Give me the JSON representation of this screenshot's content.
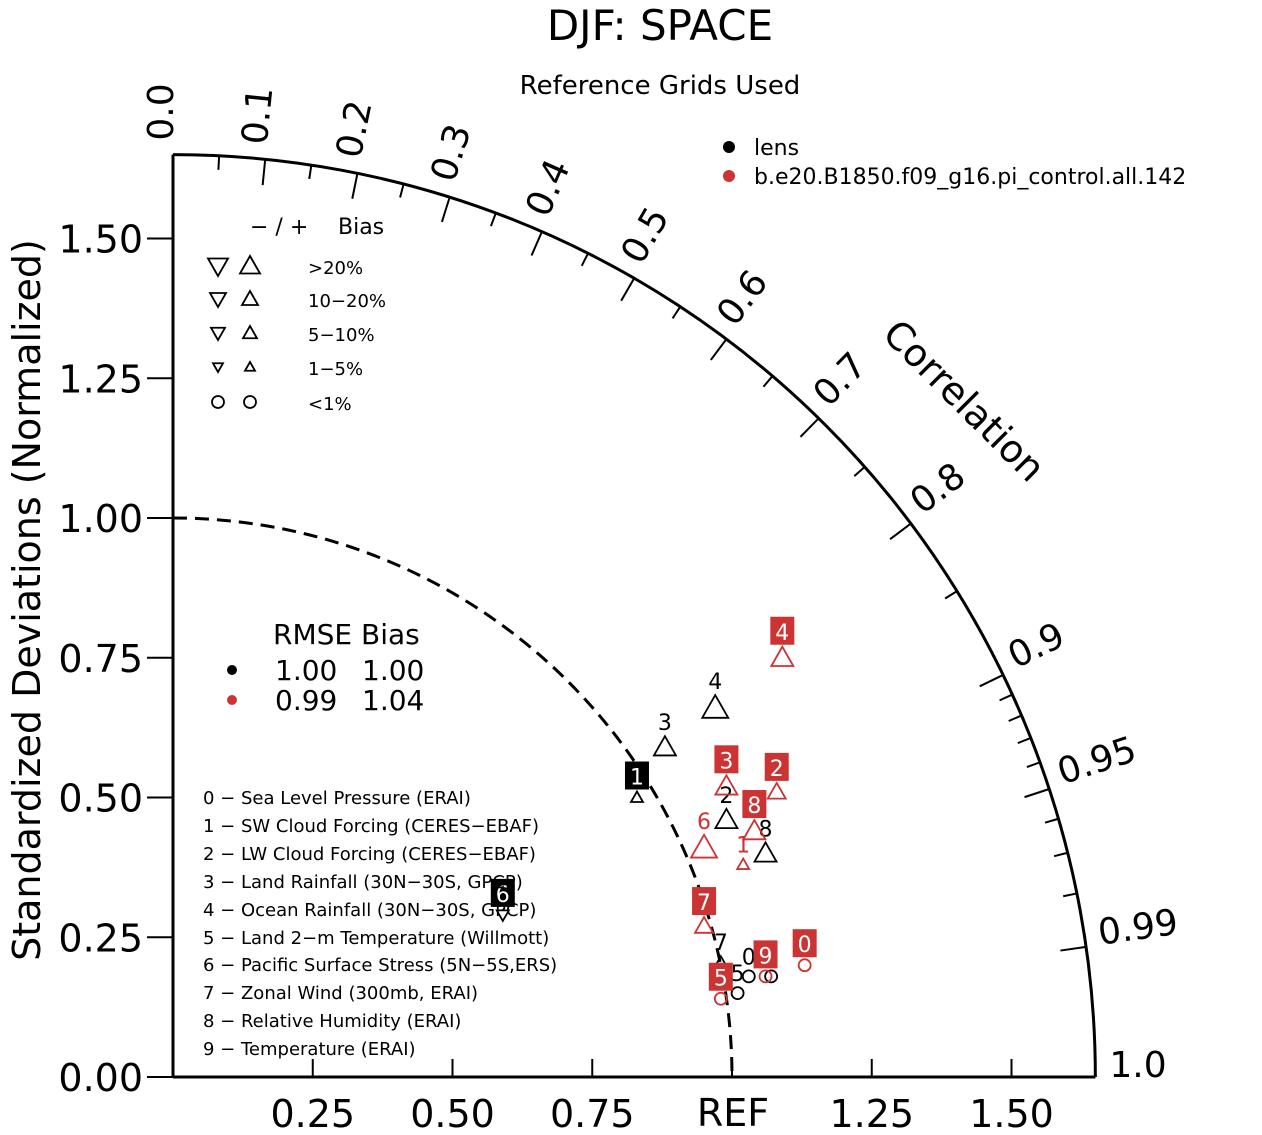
{
  "chart_data": {
    "type": "scatter",
    "title": "DJF: SPACE",
    "subtitle": "Reference Grids Used",
    "ylabel": "Standardized Deviations (Normalized)",
    "angular_label": "Correlation",
    "ref_label": "REF",
    "xlim": [
      0,
      1.65
    ],
    "ylim": [
      0,
      1.65
    ],
    "x_ticks": [
      "0.25",
      "0.50",
      "0.75",
      "1.25",
      "1.50"
    ],
    "y_ticks": [
      "0.00",
      "0.25",
      "0.50",
      "0.75",
      "1.00",
      "1.25",
      "1.50"
    ],
    "corr_labels": [
      "0.0",
      "0.1",
      "0.2",
      "0.3",
      "0.4",
      "0.5",
      "0.6",
      "0.7",
      "0.8",
      "0.9",
      "0.95",
      "0.99",
      "1.0"
    ],
    "colors": {
      "lens": "#000000",
      "pi_control": "#cc3333"
    },
    "legend": [
      {
        "name": "lens",
        "color": "#000000"
      },
      {
        "name": "b.e20.B1850.f09_g16.pi_control.all.142",
        "color": "#cc3333"
      }
    ],
    "bias_legend": {
      "header_signs": "− / +",
      "header_label": "Bias",
      "rows": [
        ">20%",
        "10−20%",
        "5−10%",
        "1−5%",
        "<1%"
      ]
    },
    "rmse_legend": {
      "header": "RMSE Bias",
      "rows": [
        {
          "rmse": "1.00",
          "bias": "1.00",
          "color": "#000000"
        },
        {
          "rmse": "0.99",
          "bias": "1.04",
          "color": "#cc3333"
        }
      ]
    },
    "variables": [
      "0 − Sea Level Pressure (ERAI)",
      "1 − SW Cloud Forcing (CERES−EBAF)",
      "2 − LW Cloud Forcing (CERES−EBAF)",
      "3 − Land Rainfall (30N−30S, GPCP)",
      "4 − Ocean Rainfall (30N−30S, GPCP)",
      "5 − Land 2−m Temperature (Willmott)",
      "6 − Pacific Surface Stress (5N−5S,ERS)",
      "7 − Zonal Wind (300mb, ERAI)",
      "8 − Relative Humidity (ERAI)",
      "9 − Temperature (ERAI)"
    ],
    "series": [
      {
        "name": "lens",
        "points": [
          {
            "id": "0",
            "x": 1.03,
            "y": 0.18,
            "marker": "circle",
            "label_boxed": false
          },
          {
            "id": "1",
            "x": 0.83,
            "y": 0.5,
            "marker": "up",
            "size": "small",
            "label_boxed": true
          },
          {
            "id": "2",
            "x": 0.99,
            "y": 0.46,
            "marker": "up",
            "size": "large",
            "label_boxed": false
          },
          {
            "id": "3",
            "x": 0.88,
            "y": 0.59,
            "marker": "up",
            "size": "large",
            "label_boxed": false
          },
          {
            "id": "4",
            "x": 0.97,
            "y": 0.66,
            "marker": "up",
            "size": "xlarge",
            "label_boxed": false
          },
          {
            "id": "5",
            "x": 1.01,
            "y": 0.15,
            "marker": "circle",
            "label_boxed": false
          },
          {
            "id": "6",
            "x": 0.59,
            "y": 0.29,
            "marker": "down",
            "size": "small",
            "label_boxed": true
          },
          {
            "id": "7",
            "x": 0.98,
            "y": 0.2,
            "marker": "up",
            "size": "medium",
            "label_boxed": false
          },
          {
            "id": "8",
            "x": 1.06,
            "y": 0.4,
            "marker": "up",
            "size": "large",
            "label_boxed": false
          },
          {
            "id": "9",
            "x": 1.07,
            "y": 0.18,
            "marker": "circle",
            "label_boxed": false
          }
        ]
      },
      {
        "name": "b.e20.B1850.f09_g16.pi_control.all.142",
        "points": [
          {
            "id": "0",
            "x": 1.13,
            "y": 0.2,
            "marker": "circle",
            "label_boxed": true
          },
          {
            "id": "1",
            "x": 1.02,
            "y": 0.38,
            "marker": "up",
            "size": "small",
            "label_boxed": false
          },
          {
            "id": "2",
            "x": 1.08,
            "y": 0.51,
            "marker": "up",
            "size": "medium",
            "label_boxed": true
          },
          {
            "id": "3",
            "x": 0.99,
            "y": 0.52,
            "marker": "up",
            "size": "large",
            "label_boxed": true
          },
          {
            "id": "4",
            "x": 1.09,
            "y": 0.75,
            "marker": "up",
            "size": "large",
            "label_boxed": true
          },
          {
            "id": "5",
            "x": 0.98,
            "y": 0.14,
            "marker": "circle",
            "label_boxed": true
          },
          {
            "id": "6",
            "x": 0.95,
            "y": 0.41,
            "marker": "up",
            "size": "xlarge",
            "label_boxed": false
          },
          {
            "id": "7",
            "x": 0.95,
            "y": 0.27,
            "marker": "up",
            "size": "medium",
            "label_boxed": true
          },
          {
            "id": "8",
            "x": 1.04,
            "y": 0.44,
            "marker": "up",
            "size": "large",
            "label_boxed": true
          },
          {
            "id": "9",
            "x": 1.06,
            "y": 0.18,
            "marker": "circle",
            "label_boxed": true
          }
        ]
      }
    ]
  }
}
